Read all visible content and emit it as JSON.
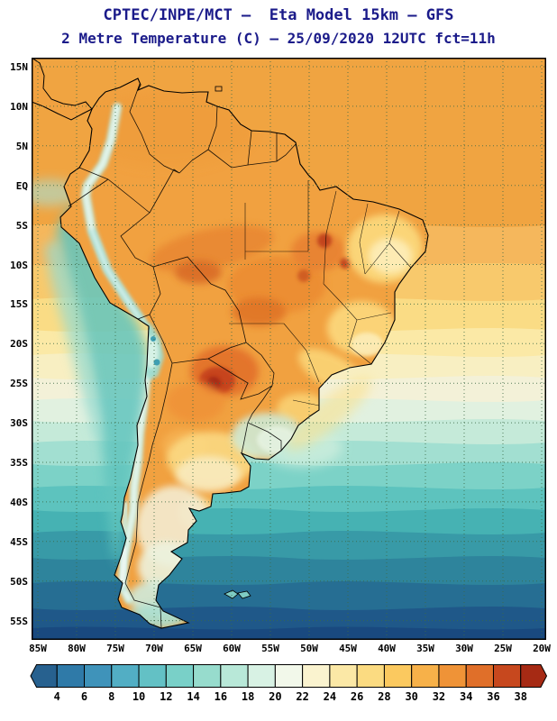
{
  "title": {
    "line1": "CPTEC/INPE/MCT —  Eta Model 15km — GFS",
    "line2": "2 Metre Temperature (C) — 25/09/2020 12UTC fct=11h"
  },
  "axes": {
    "lat_ticks": [
      "15N",
      "10N",
      "5N",
      "EQ",
      "5S",
      "10S",
      "15S",
      "20S",
      "25S",
      "30S",
      "35S",
      "40S",
      "45S",
      "50S",
      "55S"
    ],
    "lon_ticks": [
      "85W",
      "80W",
      "75W",
      "70W",
      "65W",
      "60W",
      "55W",
      "50W",
      "45W",
      "40W",
      "35W",
      "30W",
      "25W",
      "20W"
    ]
  },
  "colorbar": {
    "tick_labels": [
      "4",
      "6",
      "8",
      "10",
      "12",
      "14",
      "16",
      "18",
      "20",
      "22",
      "24",
      "26",
      "28",
      "30",
      "32",
      "34",
      "36",
      "38"
    ],
    "colors": [
      "#27618f",
      "#2f7aa8",
      "#3f93ba",
      "#52aec4",
      "#63c1c5",
      "#79d0c8",
      "#97dccd",
      "#b8e8d8",
      "#d8f2e4",
      "#f2f8ea",
      "#faf3cf",
      "#fbe8a6",
      "#fbdb81",
      "#fbc95f",
      "#f7b149",
      "#ef9337",
      "#e06f29",
      "#c7481e",
      "#a62a14"
    ]
  }
}
